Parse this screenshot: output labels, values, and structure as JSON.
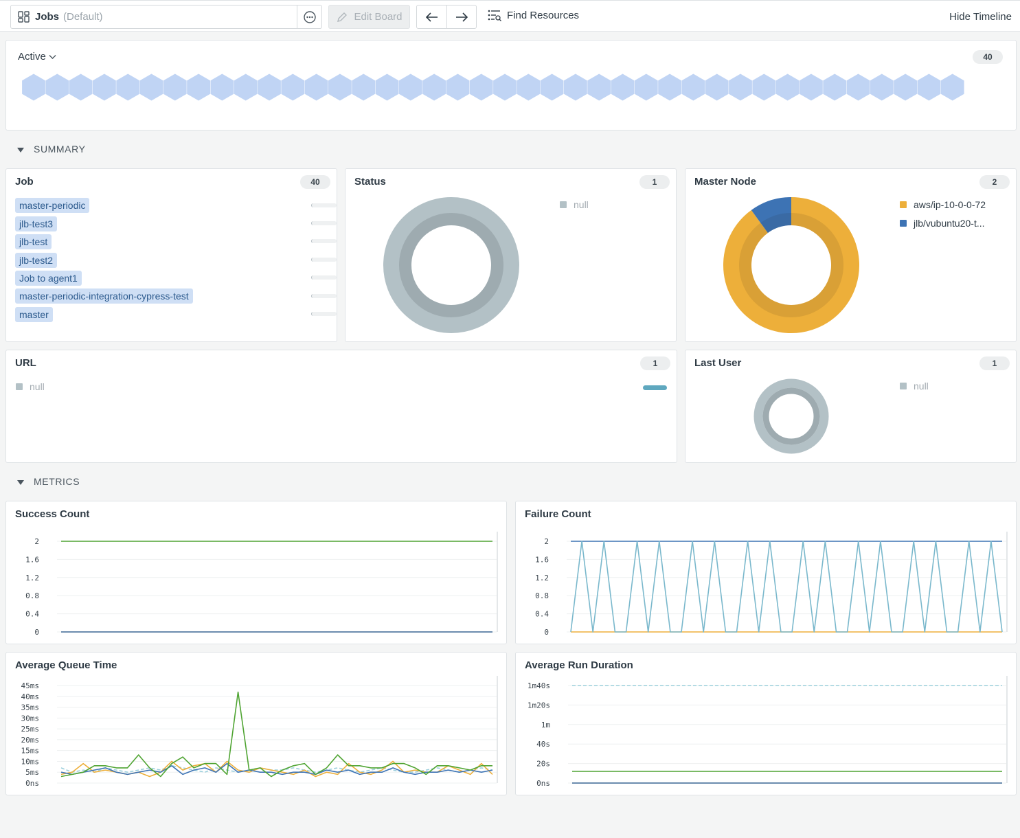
{
  "toolbar": {
    "board_name": "Jobs",
    "board_default": "(Default)",
    "edit_label": "Edit Board",
    "find_label": "Find Resources",
    "hide_timeline_label": "Hide Timeline"
  },
  "active": {
    "label": "Active",
    "count": "40",
    "hex_count": 40,
    "hex_color": "#c0d4f4"
  },
  "sections": {
    "summary": "SUMMARY",
    "metrics": "METRICS"
  },
  "job": {
    "title": "Job",
    "count": "40",
    "items": [
      {
        "label": "master-periodic"
      },
      {
        "label": "jlb-test3"
      },
      {
        "label": "jlb-test"
      },
      {
        "label": "jlb-test2"
      },
      {
        "label": "Job to agent1"
      },
      {
        "label": "master-periodic-integration-cypress-test"
      },
      {
        "label": "master"
      }
    ]
  },
  "status": {
    "title": "Status",
    "count": "1",
    "legend": [
      {
        "label": "null",
        "color": "#b3c1c6"
      }
    ]
  },
  "master_node": {
    "title": "Master Node",
    "count": "2",
    "legend": [
      {
        "label": "aws/ip-10-0-0-72",
        "color": "#edaf3a"
      },
      {
        "label": "jlb/vubuntu20-t...",
        "color": "#3d73b4"
      }
    ],
    "slices": [
      0.9,
      0.1
    ]
  },
  "url": {
    "title": "URL",
    "count": "1",
    "legend": [
      {
        "label": "null",
        "color": "#b3c1c6"
      }
    ]
  },
  "last_user": {
    "title": "Last User",
    "count": "1",
    "legend": [
      {
        "label": "null",
        "color": "#b3c1c6"
      }
    ]
  },
  "chart_data": [
    {
      "type": "line",
      "title": "Success Count",
      "yticks": [
        "2",
        "1.6",
        "1.2",
        "0.8",
        "0.4",
        "0"
      ],
      "ylim": [
        0,
        2
      ],
      "n": 40,
      "series": [
        {
          "color": "#4fa432",
          "values": [
            2,
            2,
            2,
            2,
            2,
            2,
            2,
            2,
            2,
            2,
            2,
            2,
            2,
            2,
            2,
            2,
            2,
            2,
            2,
            2,
            2,
            2,
            2,
            2,
            2,
            2,
            2,
            2,
            2,
            2,
            2,
            2,
            2,
            2,
            2,
            2,
            2,
            2,
            2,
            2
          ]
        },
        {
          "color": "#edaf3a",
          "values": [
            0,
            0,
            0,
            0,
            0,
            0,
            0,
            0,
            0,
            0,
            0,
            0,
            0,
            0,
            0,
            0,
            0,
            0,
            0,
            0,
            0,
            0,
            0,
            0,
            0,
            0,
            0,
            0,
            0,
            0,
            0,
            0,
            0,
            0,
            0,
            0,
            0,
            0,
            0,
            0
          ]
        },
        {
          "color": "#3d73b4",
          "values": [
            0,
            0,
            0,
            0,
            0,
            0,
            0,
            0,
            0,
            0,
            0,
            0,
            0,
            0,
            0,
            0,
            0,
            0,
            0,
            0,
            0,
            0,
            0,
            0,
            0,
            0,
            0,
            0,
            0,
            0,
            0,
            0,
            0,
            0,
            0,
            0,
            0,
            0,
            0,
            0
          ]
        }
      ]
    },
    {
      "type": "line",
      "title": "Failure Count",
      "yticks": [
        "2",
        "1.6",
        "1.2",
        "0.8",
        "0.4",
        "0"
      ],
      "ylim": [
        0,
        2
      ],
      "n": 40,
      "series": [
        {
          "color": "#3d73b4",
          "values": [
            2,
            2,
            2,
            2,
            2,
            2,
            2,
            2,
            2,
            2,
            2,
            2,
            2,
            2,
            2,
            2,
            2,
            2,
            2,
            2,
            2,
            2,
            2,
            2,
            2,
            2,
            2,
            2,
            2,
            2,
            2,
            2,
            2,
            2,
            2,
            2,
            2,
            2,
            2,
            2
          ]
        },
        {
          "color": "#edaf3a",
          "values": [
            0,
            0,
            0,
            0,
            0,
            0,
            0,
            0,
            0,
            0,
            0,
            0,
            0,
            0,
            0,
            0,
            0,
            0,
            0,
            0,
            0,
            0,
            0,
            0,
            0,
            0,
            0,
            0,
            0,
            0,
            0,
            0,
            0,
            0,
            0,
            0,
            0,
            0,
            0,
            0
          ]
        },
        {
          "color": "#7ab8cc",
          "values": [
            0,
            2,
            0,
            2,
            0,
            0,
            2,
            0,
            2,
            0,
            0,
            2,
            0,
            2,
            0,
            0,
            2,
            0,
            2,
            0,
            0,
            2,
            0,
            2,
            0,
            0,
            2,
            0,
            2,
            0,
            0,
            2,
            0,
            2,
            0,
            0,
            2,
            0,
            2,
            0
          ]
        }
      ]
    },
    {
      "type": "line",
      "title": "Average Queue Time",
      "yticks": [
        "45ms",
        "40ms",
        "35ms",
        "30ms",
        "25ms",
        "20ms",
        "15ms",
        "10ms",
        "5ms",
        "0ns"
      ],
      "ylim": [
        0,
        45
      ],
      "n": 40,
      "series": [
        {
          "color": "#9ccfdc",
          "dashed": true,
          "values": [
            7,
            5,
            6,
            5,
            7,
            6,
            5,
            6,
            7,
            6,
            8,
            7,
            6,
            5,
            7,
            6,
            5,
            6,
            7,
            6,
            6,
            7,
            6,
            5,
            6,
            7,
            6,
            5,
            6,
            7,
            6,
            5,
            5,
            6,
            7,
            6,
            5,
            6,
            7,
            6
          ]
        },
        {
          "color": "#edaf3a",
          "values": [
            4,
            5,
            9,
            5,
            6,
            5,
            4,
            5,
            3,
            5,
            10,
            6,
            8,
            9,
            5,
            10,
            6,
            5,
            7,
            6,
            5,
            4,
            6,
            3,
            5,
            4,
            9,
            5,
            4,
            6,
            10,
            5,
            6,
            5,
            5,
            8,
            6,
            4,
            9,
            4
          ]
        },
        {
          "color": "#3d73b4",
          "values": [
            5,
            4,
            5,
            6,
            7,
            5,
            4,
            5,
            6,
            5,
            8,
            4,
            6,
            7,
            5,
            9,
            5,
            6,
            5,
            5,
            4,
            5,
            5,
            4,
            6,
            5,
            6,
            4,
            5,
            5,
            7,
            5,
            4,
            5,
            5,
            6,
            5,
            6,
            5,
            6
          ]
        },
        {
          "color": "#4fa432",
          "values": [
            3,
            4,
            5,
            8,
            8,
            7,
            7,
            13,
            7,
            3,
            9,
            12,
            7,
            9,
            9,
            4,
            42,
            6,
            7,
            3,
            6,
            8,
            9,
            4,
            7,
            13,
            8,
            8,
            7,
            7,
            9,
            9,
            7,
            4,
            8,
            8,
            7,
            6,
            8,
            8
          ]
        }
      ]
    },
    {
      "type": "line",
      "title": "Average Run Duration",
      "yticks": [
        "1m40s",
        "1m20s",
        "1m",
        "40s",
        "20s",
        "0ns"
      ],
      "ylim": [
        0,
        100
      ],
      "n": 40,
      "series": [
        {
          "color": "#9ccfdc",
          "dashed": true,
          "values": [
            100,
            100,
            100,
            100,
            100,
            100,
            100,
            100,
            100,
            100,
            100,
            100,
            100,
            100,
            100,
            100,
            100,
            100,
            100,
            100,
            100,
            100,
            100,
            100,
            100,
            100,
            100,
            100,
            100,
            100,
            100,
            100,
            100,
            100,
            100,
            100,
            100,
            100,
            100,
            100
          ]
        },
        {
          "color": "#4fa432",
          "values": [
            12,
            12,
            12,
            12,
            12,
            12,
            12,
            12,
            12,
            12,
            12,
            12,
            12,
            12,
            12,
            12,
            12,
            12,
            12,
            12,
            12,
            12,
            12,
            12,
            12,
            12,
            12,
            12,
            12,
            12,
            12,
            12,
            12,
            12,
            12,
            12,
            12,
            12,
            12,
            12
          ]
        },
        {
          "color": "#edaf3a",
          "values": [
            0,
            0,
            0,
            0,
            0,
            0,
            0,
            0,
            0,
            0,
            0,
            0,
            0,
            0,
            0,
            0,
            0,
            0,
            0,
            0,
            0,
            0,
            0,
            0,
            0,
            0,
            0,
            0,
            0,
            0,
            0,
            0,
            0,
            0,
            0,
            0,
            0,
            0,
            0,
            0
          ]
        },
        {
          "color": "#3d73b4",
          "values": [
            0,
            0,
            0,
            0,
            0,
            0,
            0,
            0,
            0,
            0,
            0,
            0,
            0,
            0,
            0,
            0,
            0,
            0,
            0,
            0,
            0,
            0,
            0,
            0,
            0,
            0,
            0,
            0,
            0,
            0,
            0,
            0,
            0,
            0,
            0,
            0,
            0,
            0,
            0,
            0
          ]
        }
      ]
    }
  ]
}
